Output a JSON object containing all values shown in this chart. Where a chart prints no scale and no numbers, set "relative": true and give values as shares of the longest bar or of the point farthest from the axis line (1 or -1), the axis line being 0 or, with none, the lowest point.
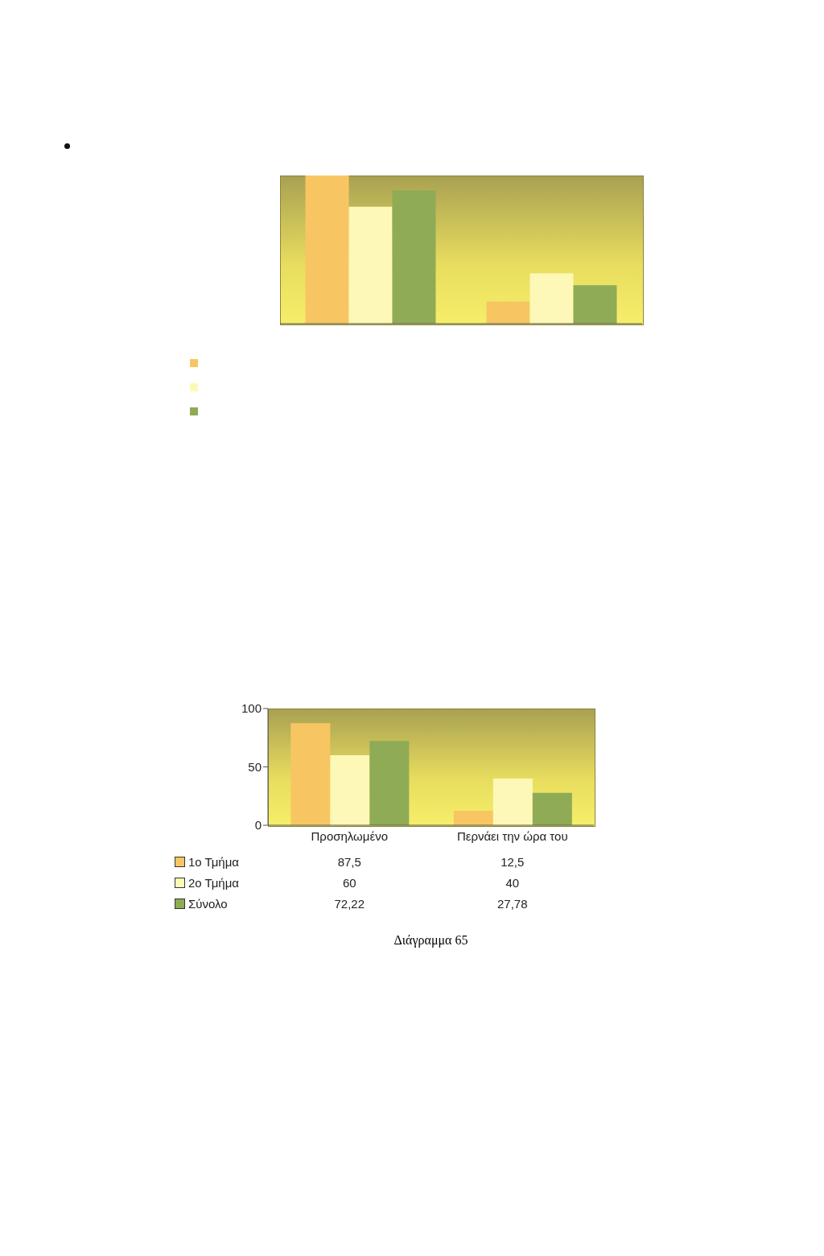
{
  "chart_data": [
    {
      "type": "bar",
      "relative": true,
      "categories": [
        null,
        null
      ],
      "series": [
        {
          "color": "#f7c663",
          "values": [
            1,
            0.15
          ]
        },
        {
          "color": "#fdf8b8",
          "values": [
            0.79,
            0.34
          ]
        },
        {
          "color": "#8fab55",
          "values": [
            0.9,
            0.26
          ]
        }
      ]
    },
    {
      "type": "bar",
      "categories": [
        "Προσηλωμένο",
        "Περνάει την ώρα του"
      ],
      "series": [
        {
          "name": "1ο Τμήμα",
          "color": "#f7c663",
          "values": [
            87.5,
            12.5
          ],
          "value_labels": [
            "87,5",
            "12,5"
          ]
        },
        {
          "name": "2ο Τμήμα",
          "color": "#fdf8b8",
          "values": [
            60,
            40
          ],
          "value_labels": [
            "60",
            "40"
          ]
        },
        {
          "name": "Σύνολο",
          "color": "#8fab55",
          "values": [
            72.22,
            27.78
          ],
          "value_labels": [
            "72,22",
            "27,78"
          ]
        }
      ],
      "ylim": [
        0,
        100
      ],
      "yticks": [
        0,
        50,
        100
      ],
      "legend": "bottom left",
      "annotations": [
        "Διάγραμμα 65"
      ]
    }
  ]
}
